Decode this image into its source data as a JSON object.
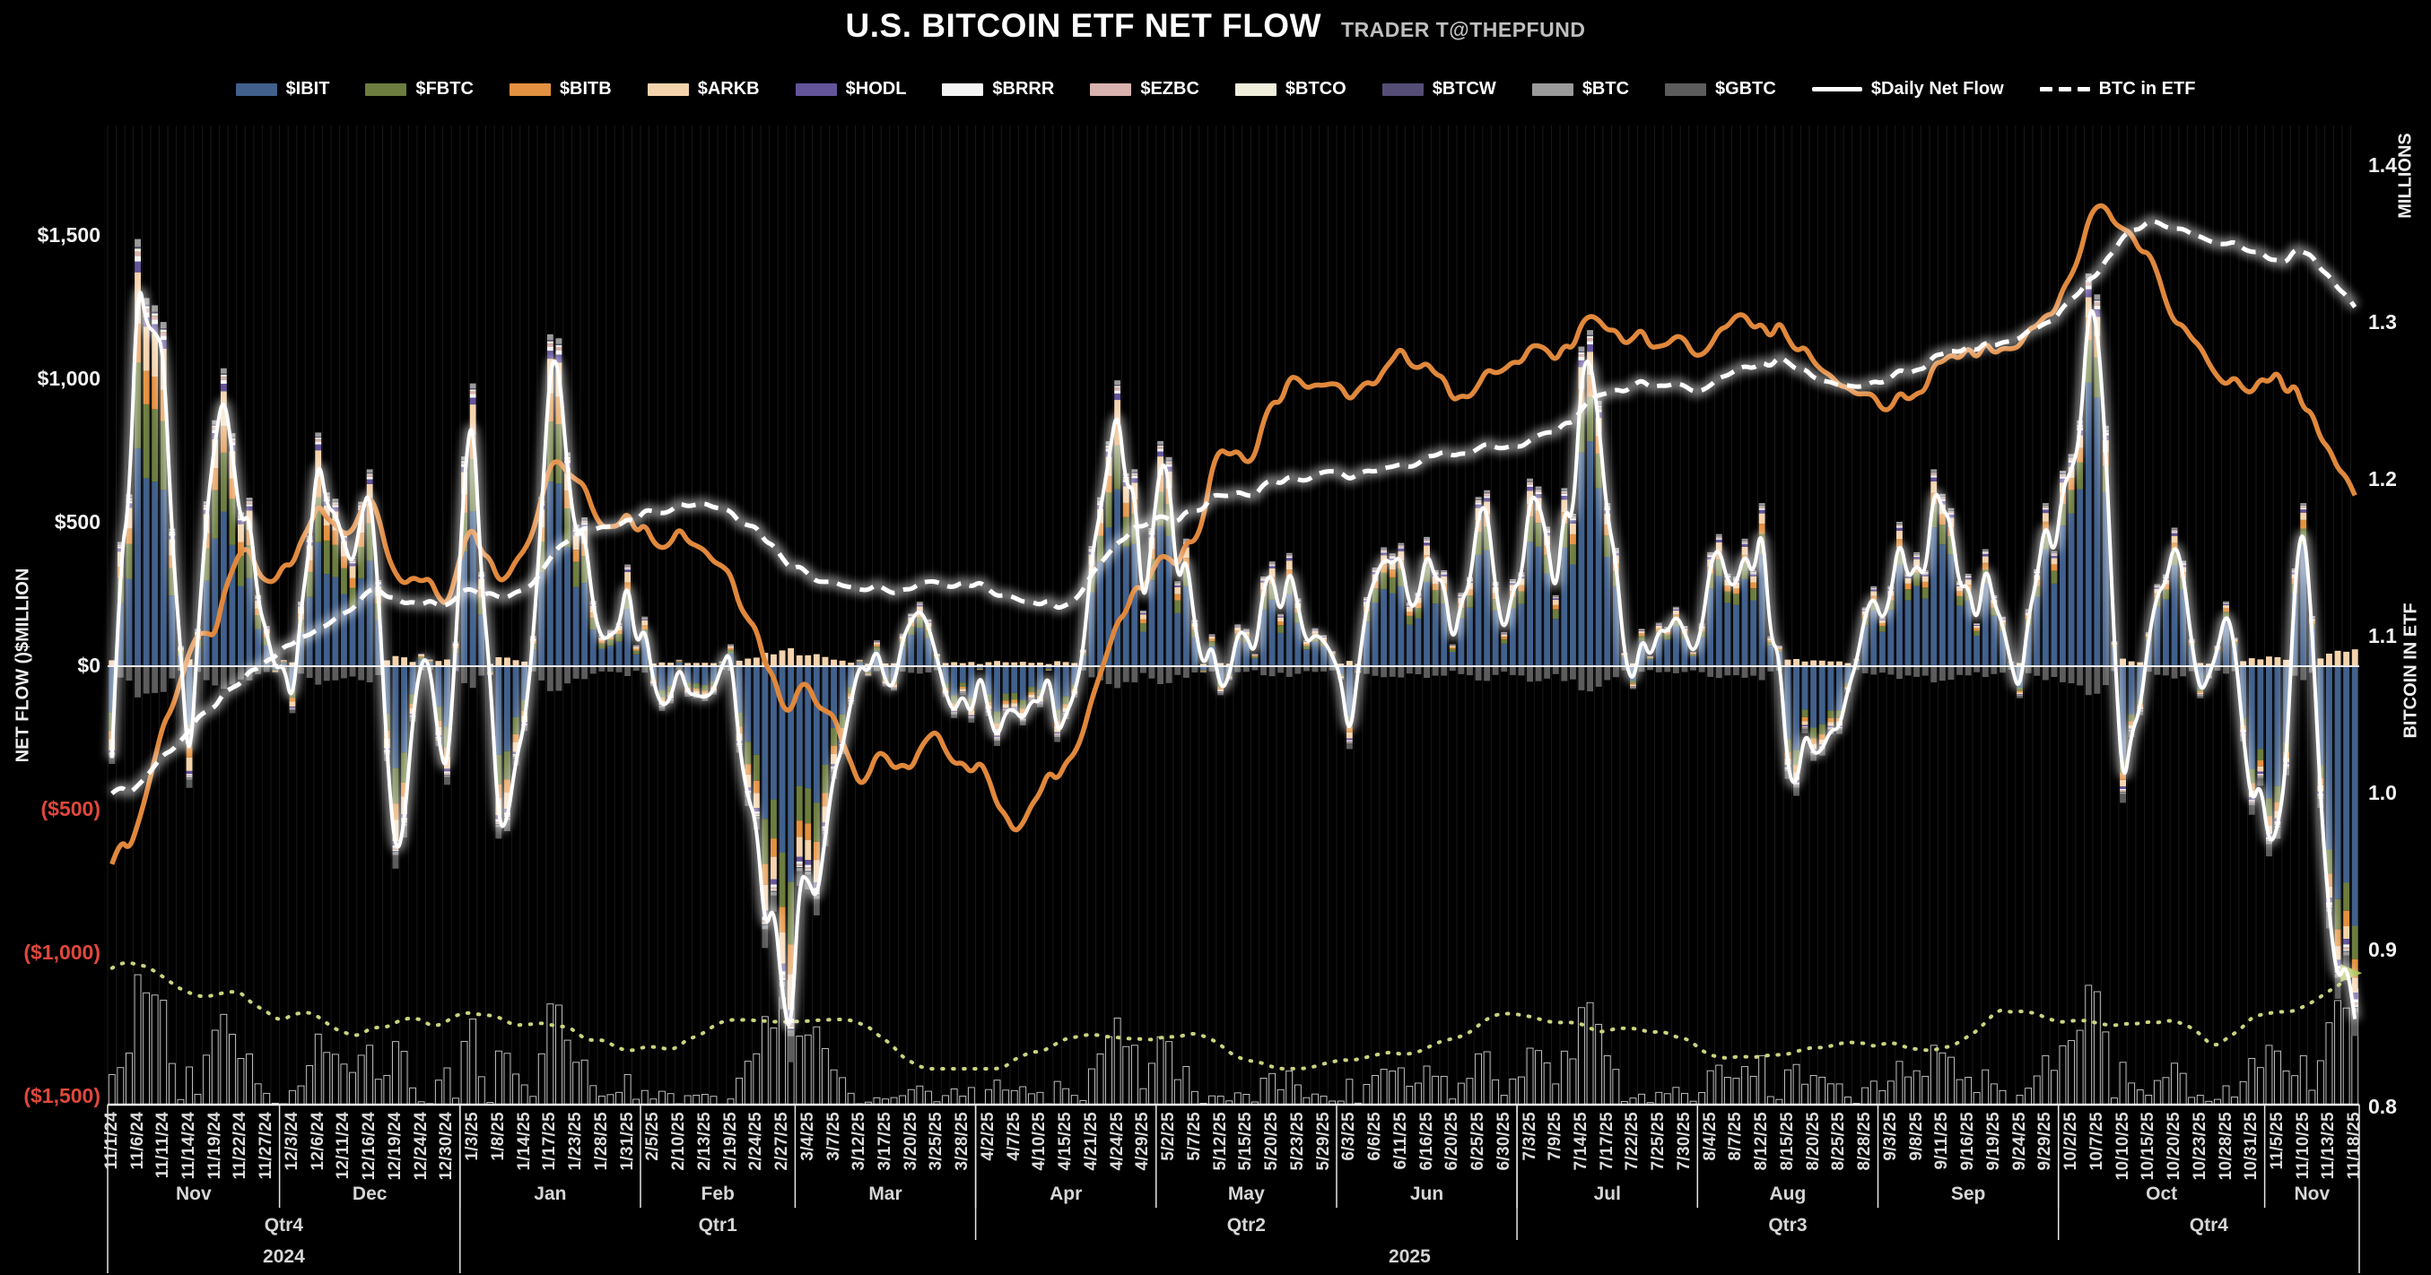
{
  "title": {
    "text": "U.S. BITCOIN ETF NET FLOW",
    "byline": "TRADER T@THEPFUND"
  },
  "legend": {
    "items": [
      {
        "label": "$IBIT",
        "color": "#41608C",
        "marker": "patch"
      },
      {
        "label": "$FBTC",
        "color": "#6C7D3F",
        "marker": "patch"
      },
      {
        "label": "$BITB",
        "color": "#E39140",
        "marker": "patch"
      },
      {
        "label": "$ARKB",
        "color": "#F4D3AC",
        "marker": "patch"
      },
      {
        "label": "$HODL",
        "color": "#64549B",
        "marker": "patch"
      },
      {
        "label": "$BRRR",
        "color": "#F4F4F4",
        "marker": "patch"
      },
      {
        "label": "$EZBC",
        "color": "#D8B2AE",
        "marker": "patch"
      },
      {
        "label": "$BTCO",
        "color": "#EFEFDC",
        "marker": "patch"
      },
      {
        "label": "$BTCW",
        "color": "#554D76",
        "marker": "patch"
      },
      {
        "label": "$BTC",
        "color": "#9A9A9A",
        "marker": "patch"
      },
      {
        "label": "$GBTC",
        "color": "#5C5C5C",
        "marker": "patch"
      },
      {
        "label": "$Daily Net Flow",
        "color": "#FFFFFF",
        "marker": "line"
      },
      {
        "label": "BTC in ETF",
        "color": "#FFFFFF",
        "marker": "dashed-line"
      }
    ]
  },
  "axes": {
    "left": {
      "title": "NET FLOW ()$MILLION",
      "positive_color": "#F2F2F2",
      "negative_color": "#E0473C",
      "ticks": [
        {
          "label": "$1,500",
          "value": 1500
        },
        {
          "label": "$1,000",
          "value": 1000
        },
        {
          "label": "$500",
          "value": 500
        },
        {
          "label": "$0",
          "value": 0
        },
        {
          "label": "($500)",
          "value": -500
        },
        {
          "label": "($1,000)",
          "value": -1000
        },
        {
          "label": "($1,500)",
          "value": -1500
        }
      ]
    },
    "right": {
      "unit_label": "MILLIONS",
      "title": "BITCOIN IN ETF",
      "ticks": [
        {
          "label": "1.4",
          "value": 1.4
        },
        {
          "label": "1.3",
          "value": 1.3
        },
        {
          "label": "1.2",
          "value": 1.2
        },
        {
          "label": "1.1",
          "value": 1.1
        },
        {
          "label": "1.0",
          "value": 1.0
        },
        {
          "label": "0.9",
          "value": 0.9
        },
        {
          "label": "0.8",
          "value": 0.8
        }
      ]
    },
    "bottom": {
      "months": [
        {
          "label": "Nov",
          "start": 0
        },
        {
          "label": "Dec",
          "start": 7
        },
        {
          "label": "Jan",
          "start": 14
        },
        {
          "label": "Feb",
          "start": 21
        },
        {
          "label": "Mar",
          "start": 27
        },
        {
          "label": "Apr",
          "start": 34
        },
        {
          "label": "May",
          "start": 41
        },
        {
          "label": "Jun",
          "start": 48
        },
        {
          "label": "Jul",
          "start": 55
        },
        {
          "label": "Aug",
          "start": 62
        },
        {
          "label": "Sep",
          "start": 69
        },
        {
          "label": "Oct",
          "start": 76
        },
        {
          "label": "Nov",
          "start": 84
        }
      ],
      "quarters": [
        {
          "label": "Qtr4",
          "start": 0
        },
        {
          "label": "Qtr1",
          "start": 14
        },
        {
          "label": "Qtr2",
          "start": 34
        },
        {
          "label": "Qtr3",
          "start": 55
        },
        {
          "label": "Qtr4",
          "start": 76
        }
      ],
      "years": [
        {
          "label": "2024",
          "start": 0
        },
        {
          "label": "2025",
          "start": 14
        }
      ]
    }
  },
  "chart_data": {
    "type": "composite",
    "labels_every_n_trading_days": 3,
    "ylim_left": [
      -1500,
      1500
    ],
    "ylim_right": [
      0.8,
      1.4
    ],
    "x_labels": [
      "11/1/24",
      "11/6/24",
      "11/11/24",
      "11/14/24",
      "11/19/24",
      "11/22/24",
      "11/27/24",
      "12/3/24",
      "12/6/24",
      "12/11/24",
      "12/16/24",
      "12/19/24",
      "12/24/24",
      "12/30/24",
      "1/3/25",
      "1/8/25",
      "1/14/25",
      "1/17/25",
      "1/23/25",
      "1/28/25",
      "1/31/25",
      "2/5/25",
      "2/10/25",
      "2/13/25",
      "2/19/25",
      "2/24/25",
      "2/27/25",
      "3/4/25",
      "3/7/25",
      "3/12/25",
      "3/17/25",
      "3/20/25",
      "3/25/25",
      "3/28/25",
      "4/2/25",
      "4/7/25",
      "4/10/25",
      "4/15/25",
      "4/21/25",
      "4/24/25",
      "4/29/25",
      "5/2/25",
      "5/7/25",
      "5/12/25",
      "5/15/25",
      "5/20/25",
      "5/23/25",
      "5/29/25",
      "6/3/25",
      "6/6/25",
      "6/11/25",
      "6/16/25",
      "6/20/25",
      "6/25/25",
      "6/30/25",
      "7/3/25",
      "7/9/25",
      "7/14/25",
      "7/17/25",
      "7/22/25",
      "7/25/25",
      "7/30/25",
      "8/4/25",
      "8/7/25",
      "8/12/25",
      "8/15/25",
      "8/20/25",
      "8/25/25",
      "8/28/25",
      "9/3/25",
      "9/8/25",
      "9/11/25",
      "9/16/25",
      "9/19/25",
      "9/24/25",
      "9/29/25",
      "10/2/25",
      "10/7/25",
      "10/10/25",
      "10/15/25",
      "10/20/25",
      "10/23/25",
      "10/28/25",
      "10/31/25",
      "11/5/25",
      "11/10/25",
      "11/13/25",
      "11/18/25"
    ],
    "series": [
      {
        "name": "$Daily Net Flow",
        "type": "line",
        "axis": "left",
        "unit": "USD millions",
        "color": "#FFFFFF",
        "values": [
          -320,
          1380,
          1110,
          -400,
          790,
          490,
          120,
          -150,
          750,
          430,
          630,
          -670,
          30,
          -390,
          910,
          -570,
          -210,
          1070,
          450,
          90,
          320,
          -60,
          10,
          -110,
          60,
          -540,
          -1140,
          -740,
          -370,
          10,
          -60,
          160,
          30,
          -90,
          -160,
          -150,
          -130,
          -170,
          380,
          920,
          170,
          670,
          140,
          -90,
          110,
          330,
          210,
          90,
          -270,
          310,
          390,
          410,
          60,
          540,
          100,
          600,
          220,
          1030,
          520,
          -70,
          130,
          120,
          360,
          280,
          520,
          -370,
          -310,
          -220,
          180,
          250,
          360,
          550,
          290,
          220,
          -100,
          520,
          680,
          1200,
          -450,
          100,
          440,
          -100,
          200,
          -490,
          -570,
          520,
          -870,
          -1230
        ]
      },
      {
        "name": "BTC in ETF",
        "type": "line-dashed",
        "axis": "right",
        "unit": "millions of BTC",
        "color": "#FFFFFF",
        "values": [
          1.0,
          1.005,
          1.025,
          1.04,
          1.055,
          1.07,
          1.085,
          1.095,
          1.105,
          1.115,
          1.13,
          1.125,
          1.12,
          1.12,
          1.13,
          1.125,
          1.13,
          1.15,
          1.165,
          1.17,
          1.175,
          1.18,
          1.185,
          1.185,
          1.18,
          1.17,
          1.15,
          1.14,
          1.135,
          1.13,
          1.13,
          1.13,
          1.135,
          1.135,
          1.13,
          1.125,
          1.12,
          1.12,
          1.14,
          1.16,
          1.17,
          1.175,
          1.18,
          1.19,
          1.19,
          1.2,
          1.2,
          1.205,
          1.2,
          1.205,
          1.21,
          1.215,
          1.215,
          1.22,
          1.22,
          1.225,
          1.23,
          1.245,
          1.255,
          1.26,
          1.26,
          1.26,
          1.26,
          1.27,
          1.275,
          1.275,
          1.265,
          1.26,
          1.26,
          1.265,
          1.27,
          1.28,
          1.285,
          1.285,
          1.29,
          1.3,
          1.315,
          1.33,
          1.355,
          1.365,
          1.36,
          1.355,
          1.35,
          1.345,
          1.34,
          1.345,
          1.33,
          1.31
        ]
      },
      {
        "name": "orange overlay line (unlabeled)",
        "type": "line",
        "axis": "right",
        "color": "#E0883C",
        "values": [
          0.955,
          0.98,
          1.045,
          1.09,
          1.1,
          1.155,
          1.135,
          1.145,
          1.185,
          1.165,
          1.19,
          1.14,
          1.135,
          1.12,
          1.17,
          1.135,
          1.155,
          1.21,
          1.2,
          1.17,
          1.18,
          1.16,
          1.17,
          1.155,
          1.14,
          1.105,
          1.055,
          1.07,
          1.05,
          1.005,
          1.025,
          1.015,
          1.04,
          1.02,
          1.01,
          0.975,
          1.0,
          1.02,
          1.06,
          1.11,
          1.13,
          1.15,
          1.16,
          1.22,
          1.21,
          1.25,
          1.265,
          1.26,
          1.25,
          1.26,
          1.285,
          1.275,
          1.25,
          1.26,
          1.27,
          1.285,
          1.275,
          1.3,
          1.295,
          1.29,
          1.285,
          1.29,
          1.285,
          1.305,
          1.3,
          1.29,
          1.275,
          1.26,
          1.255,
          1.245,
          1.255,
          1.275,
          1.285,
          1.28,
          1.285,
          1.305,
          1.33,
          1.375,
          1.36,
          1.345,
          1.3,
          1.285,
          1.26,
          1.255,
          1.27,
          1.245,
          1.22,
          1.19
        ]
      },
      {
        "name": "ETF flows stacked bars",
        "type": "stacked-bar",
        "axis": "left",
        "components": [
          "$IBIT",
          "$FBTC",
          "$BITB",
          "$ARKB",
          "$HODL",
          "$BRRR",
          "$EZBC",
          "$BTCO",
          "$BTCW",
          "$BTC",
          "$GBTC"
        ],
        "note": "daily bars decompose the Daily Net Flow total by ETF; per-ETF split approximated from pixels",
        "approx_weights_start": {
          "$IBIT": 0.5,
          "$FBTC": 0.2,
          "$BITB": 0.09,
          "$ARKB": 0.12,
          "$HODL": 0.025,
          "$BRRR": 0.013,
          "$EZBC": 0.01,
          "$BTCO": 0.007,
          "$BTCW": 0.004,
          "$BTC": 0.018
        },
        "approx_weights_end": {
          "$IBIT": 0.78,
          "$FBTC": 0.1,
          "$BITB": 0.055,
          "$ARKB": 0.045,
          "$HODL": 0.02,
          "$BRRR": 0.01,
          "$EZBC": 0.008,
          "$BTCO": 0.005,
          "$BTCW": 0.003,
          "$BTC": 0.014
        },
        "counter_sign_share": 0.07
      },
      {
        "name": "bottom |net flow| histogram",
        "type": "bar-outline",
        "derived": "abs(Daily Net Flow), outlined bars along bottom strip",
        "color": "#D9D9D9"
      },
      {
        "name": "dotted average line",
        "type": "line-dotted",
        "derived": "rolling mean of |net flow|",
        "color": "#CBD37E",
        "endpoint_marker": "green arrow"
      }
    ]
  }
}
